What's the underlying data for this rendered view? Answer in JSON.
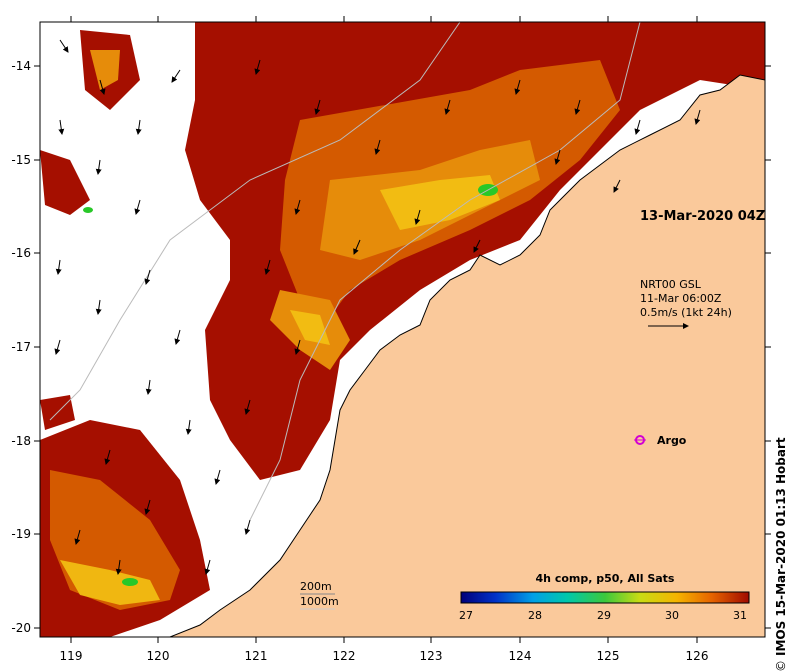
{
  "map": {
    "longitude_ticks": [
      "119",
      "120",
      "121",
      "122",
      "123",
      "124",
      "125",
      "126"
    ],
    "latitude_ticks": [
      "-14",
      "-15",
      "-16",
      "-17",
      "-18",
      "-19",
      "-20"
    ],
    "date_label": "13-Mar-2020 04Z",
    "current_info": [
      "NRT00 GSL",
      "11-Mar 06:00Z",
      "0.5m/s (1kt 24h)"
    ],
    "argo_label": "Argo",
    "depth_labels": [
      "200m",
      "1000m"
    ],
    "colorbar": {
      "title": "4h comp, p50, All Sats",
      "ticks": [
        "27",
        "28",
        "29",
        "30",
        "31"
      ],
      "min": 27,
      "max": 31
    },
    "credit": "IMOS 15-Mar-2020 01:13 Hobart",
    "credit_symbol": "©"
  },
  "colors": {
    "land": "#fac99b",
    "hot": "#a50f00",
    "warm": "#d45a00",
    "orange": "#e68c0a",
    "yellow": "#f5c814",
    "green": "#28c828",
    "argo": "#d200d2"
  }
}
